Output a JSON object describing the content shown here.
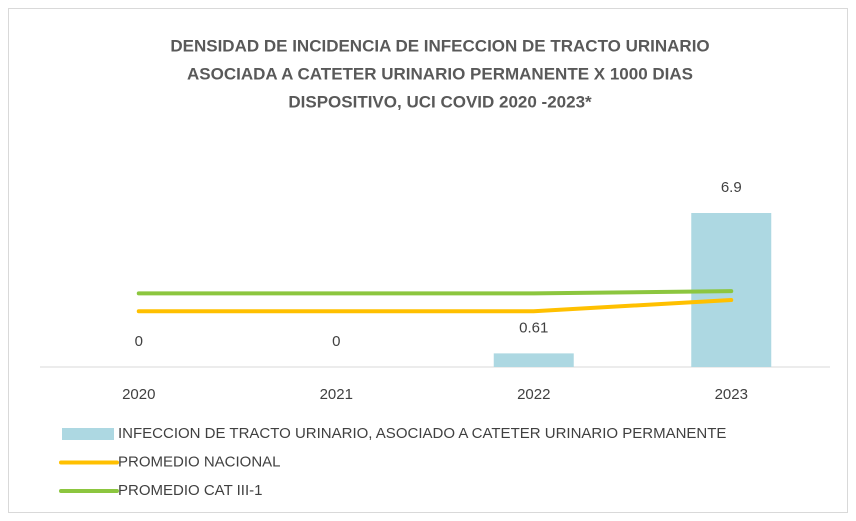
{
  "chart_data": {
    "type": "combo",
    "title": [
      "DENSIDAD DE INCIDENCIA DE INFECCION DE TRACTO URINARIO",
      "ASOCIADA A CATETER URINARIO PERMANENTE X 1000 DIAS",
      "DISPOSITIVO, UCI COVID 2020 -2023*"
    ],
    "categories": [
      "2020",
      "2021",
      "2022",
      "2023"
    ],
    "series": [
      {
        "name": "INFECCION DE TRACTO URINARIO, ASOCIADO A CATETER URINARIO PERMANENTE",
        "type": "bar",
        "color": "#add8e2",
        "values": [
          0,
          0,
          0.61,
          6.9
        ]
      },
      {
        "name": "PROMEDIO NACIONAL",
        "type": "line",
        "color": "#ffc000",
        "values": [
          2.5,
          2.5,
          2.5,
          3.0
        ]
      },
      {
        "name": "PROMEDIO CAT III-1",
        "type": "line",
        "color": "#8cc63f",
        "values": [
          3.3,
          3.3,
          3.3,
          3.4
        ]
      }
    ],
    "legend": "bottom-left"
  }
}
